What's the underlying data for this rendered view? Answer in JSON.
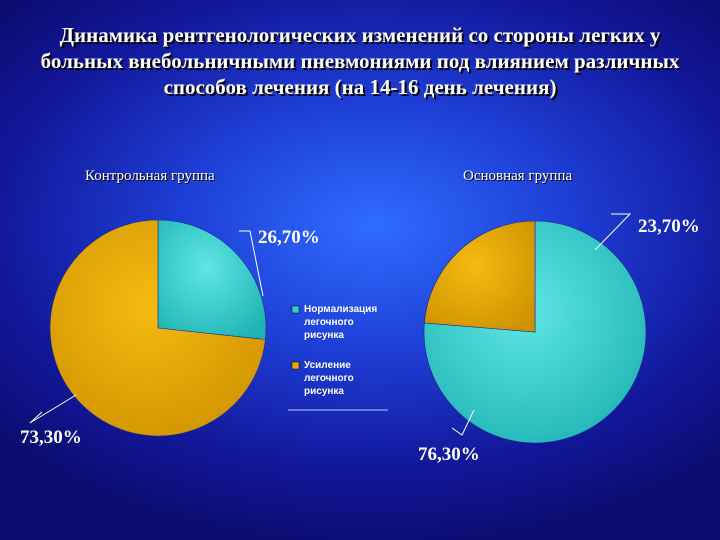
{
  "title": "Динамика рентгенологических изменений со стороны легких у больных внебольничными  пневмониями под влиянием различных способов лечения (на 14-16 день лечения)",
  "chart_data": [
    {
      "type": "pie",
      "subtitle": "Контрольная группа",
      "slices": [
        {
          "label": "Нормализация легочного рисунка",
          "value": 26.7,
          "value_label": "26,70%",
          "color": "#33cccc"
        },
        {
          "label": "Усиление легочного рисунка",
          "value": 73.3,
          "value_label": "73,30%",
          "color": "#e8a800"
        }
      ]
    },
    {
      "type": "pie",
      "subtitle": "Основная группа",
      "slices": [
        {
          "label": "Нормализация легочного рисунка",
          "value": 76.3,
          "value_label": "76,30%",
          "color": "#33cccc"
        },
        {
          "label": "Усиление легочного рисунка",
          "value": 23.7,
          "value_label": "23,70%",
          "color": "#e8a800"
        }
      ]
    }
  ],
  "legend": [
    {
      "lines": [
        "Нормализация",
        "легочного",
        "рисунка"
      ],
      "color": "#33cccc"
    },
    {
      "lines": [
        "Усиление",
        "легочного",
        "рисунка"
      ],
      "color": "#e8a800"
    }
  ]
}
